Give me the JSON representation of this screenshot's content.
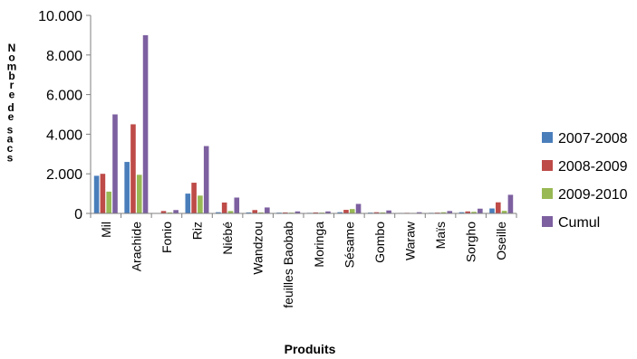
{
  "chart_data": {
    "type": "bar",
    "title": "",
    "xlabel": "Produits",
    "ylabel": "Nombre de sacs",
    "ylim": [
      0,
      10000
    ],
    "yticks": [
      0,
      2000,
      4000,
      6000,
      8000,
      10000
    ],
    "ytick_labels": [
      "0",
      "2.000",
      "4.000",
      "6.000",
      "8.000",
      "10.000"
    ],
    "grid": false,
    "legend_position": "right",
    "categories": [
      "Mil",
      "Arachide",
      "Fonio",
      "Riz",
      "Niébé",
      "Wandzou",
      "feuilles Baobab",
      "Moringa",
      "Sésame",
      "Gombo",
      "Waraw",
      "Maïs",
      "Sorgho",
      "Oseille"
    ],
    "series": [
      {
        "name": "2007-2008",
        "color": "#4a7ebb",
        "values": [
          1900,
          2600,
          0,
          1000,
          60,
          50,
          40,
          30,
          60,
          40,
          25,
          30,
          60,
          250
        ]
      },
      {
        "name": "2008-2009",
        "color": "#be4b48",
        "values": [
          2000,
          4500,
          120,
          1550,
          550,
          170,
          50,
          50,
          180,
          60,
          30,
          40,
          100,
          560
        ]
      },
      {
        "name": "2009-2010",
        "color": "#98b954",
        "values": [
          1100,
          1950,
          50,
          900,
          120,
          50,
          40,
          40,
          220,
          50,
          25,
          60,
          80,
          130
        ]
      },
      {
        "name": "Cumul",
        "color": "#7d60a0",
        "values": [
          5000,
          9000,
          170,
          3400,
          800,
          300,
          100,
          100,
          480,
          150,
          60,
          120,
          240,
          940
        ]
      }
    ]
  }
}
